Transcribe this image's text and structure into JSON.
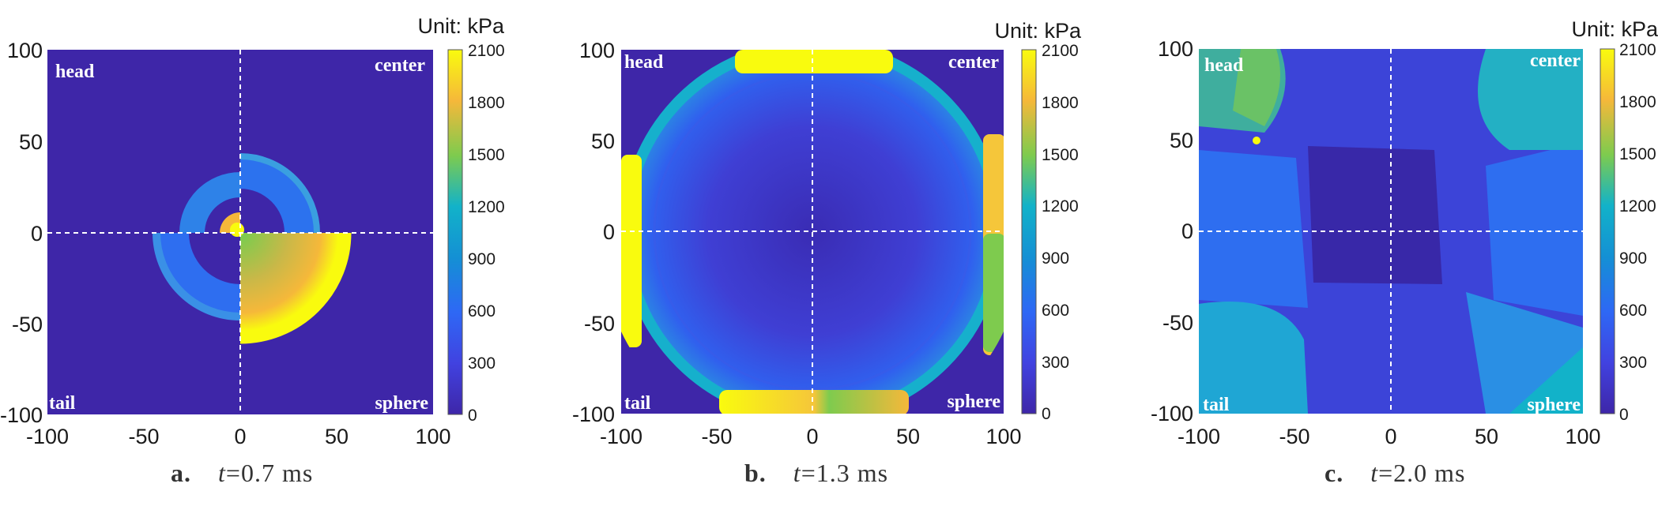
{
  "chart_data": [
    {
      "type": "heatmap",
      "panel_label": "a.",
      "time_var": "t",
      "time_value": "=0.7 ms",
      "unit": "Unit: kPa",
      "xlim": [
        -100,
        100
      ],
      "ylim": [
        -100,
        100
      ],
      "x_ticks": [
        "-100",
        "-50",
        "0",
        "50",
        "100"
      ],
      "y_ticks": [
        "100",
        "50",
        "0",
        "-50",
        "-100"
      ],
      "colorbar_ticks": [
        "2100",
        "1800",
        "1500",
        "1200",
        "900",
        "600",
        "300",
        "0"
      ],
      "colorbar_range": [
        0,
        2100
      ],
      "quadrant_labels": {
        "top_left": "head",
        "top_right": "center",
        "bottom_left": "tail",
        "bottom_right": "sphere"
      }
    },
    {
      "type": "heatmap",
      "panel_label": "b.",
      "time_var": "t",
      "time_value": "=1.3 ms",
      "unit": "Unit: kPa",
      "xlim": [
        -100,
        100
      ],
      "ylim": [
        -100,
        100
      ],
      "x_ticks": [
        "-100",
        "-50",
        "0",
        "50",
        "100"
      ],
      "y_ticks": [
        "100",
        "50",
        "0",
        "-50",
        "-100"
      ],
      "colorbar_ticks": [
        "2100",
        "1800",
        "1500",
        "1200",
        "900",
        "600",
        "300",
        "0"
      ],
      "colorbar_range": [
        0,
        2100
      ],
      "quadrant_labels": {
        "top_left": "head",
        "top_right": "center",
        "bottom_left": "tail",
        "bottom_right": "sphere"
      }
    },
    {
      "type": "heatmap",
      "panel_label": "c.",
      "time_var": "t",
      "time_value": "=2.0 ms",
      "unit": "Unit: kPa",
      "xlim": [
        -100,
        100
      ],
      "ylim": [
        -100,
        100
      ],
      "x_ticks": [
        "-100",
        "-50",
        "0",
        "50",
        "100"
      ],
      "y_ticks": [
        "100",
        "50",
        "0",
        "-50",
        "-100"
      ],
      "colorbar_ticks": [
        "2100",
        "1800",
        "1500",
        "1200",
        "900",
        "600",
        "300",
        "0"
      ],
      "colorbar_range": [
        0,
        2100
      ],
      "quadrant_labels": {
        "top_left": "head",
        "top_right": "center",
        "bottom_left": "tail",
        "bottom_right": "sphere"
      }
    }
  ],
  "colors": {
    "low": "#3e26a8",
    "mid_low": "#2e68f5",
    "mid": "#12b2c9",
    "mid_high": "#7ecb4e",
    "high_orange": "#f5b83a",
    "max": "#f9fb0e"
  }
}
